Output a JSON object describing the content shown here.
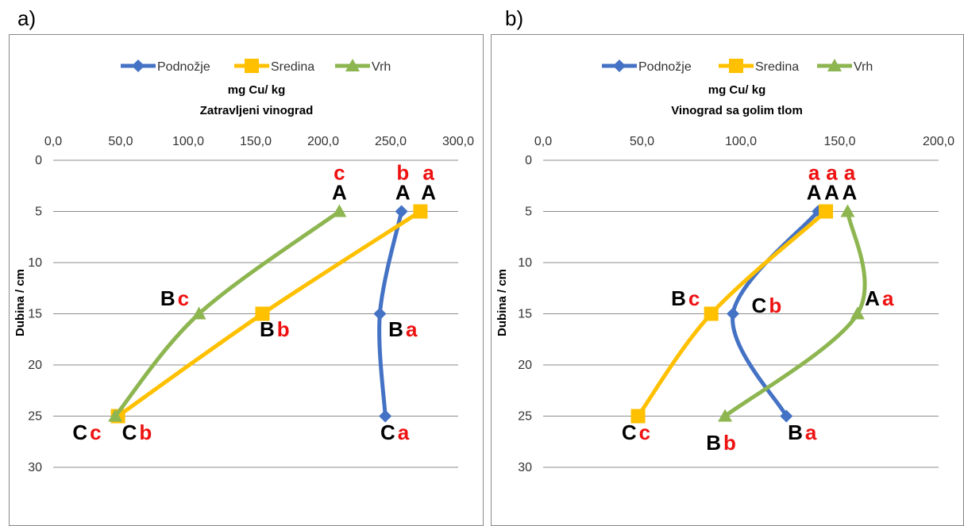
{
  "panels": [
    {
      "letter": "a)"
    },
    {
      "letter": "b)"
    }
  ],
  "chart_data": [
    {
      "type": "line",
      "title": "mg Cu/ kg",
      "subtitle": "Zatravljeni vinograd",
      "xlabel": "",
      "ylabel": "Dubina / cm",
      "xlim": [
        0,
        300
      ],
      "ylim": [
        0,
        30
      ],
      "y_inverted": true,
      "x_axis_position": "top",
      "x_ticks": [
        "0,0",
        "50,0",
        "100,0",
        "150,0",
        "200,0",
        "250,0",
        "300,0"
      ],
      "y_ticks": [
        "0",
        "5",
        "10",
        "15",
        "20",
        "25",
        "30"
      ],
      "grid": "horizontal",
      "legend_position": "top",
      "series": [
        {
          "name": "Podnožje",
          "color": "#4472c4",
          "marker": "diamond",
          "x": [
            258,
            242,
            246
          ],
          "y": [
            5,
            15,
            25
          ]
        },
        {
          "name": "Sredina",
          "color": "#ffc000",
          "marker": "square",
          "x": [
            272,
            155,
            48
          ],
          "y": [
            5,
            15,
            25
          ]
        },
        {
          "name": "Vrh",
          "color": "#8db550",
          "marker": "triangle",
          "x": [
            212,
            108,
            46
          ],
          "y": [
            5,
            15,
            25
          ]
        }
      ],
      "annotations": [
        {
          "upper": "A",
          "lower": "c",
          "stacked": true,
          "x": 212,
          "y": 5
        },
        {
          "upper": "A",
          "lower": "b",
          "stacked": true,
          "x": 259,
          "y": 5
        },
        {
          "upper": "A",
          "lower": "a",
          "stacked": true,
          "x": 278,
          "y": 5
        },
        {
          "upper": "B",
          "lower": "c",
          "stacked": false,
          "x": 90,
          "y": 14.2
        },
        {
          "upper": "B",
          "lower": "b",
          "stacked": false,
          "x": 164,
          "y": 17.2
        },
        {
          "upper": "B",
          "lower": "a",
          "stacked": false,
          "x": 259,
          "y": 17.2
        },
        {
          "upper": "C",
          "lower": "c",
          "stacked": false,
          "x": 25,
          "y": 27.3
        },
        {
          "upper": "C",
          "lower": "b",
          "stacked": false,
          "x": 62,
          "y": 27.3
        },
        {
          "upper": "C",
          "lower": "a",
          "stacked": false,
          "x": 253,
          "y": 27.3
        }
      ]
    },
    {
      "type": "line",
      "title": "mg Cu/ kg",
      "subtitle": "Vinograd sa golim tlom",
      "xlabel": "",
      "ylabel": "Dubina / cm",
      "xlim": [
        0,
        200
      ],
      "ylim": [
        0,
        30
      ],
      "y_inverted": true,
      "x_axis_position": "top",
      "x_ticks": [
        "0,0",
        "50,0",
        "100,0",
        "150,0",
        "200,0"
      ],
      "y_ticks": [
        "0",
        "5",
        "10",
        "15",
        "20",
        "25",
        "30"
      ],
      "grid": "horizontal",
      "legend_position": "top",
      "series": [
        {
          "name": "Podnožje",
          "color": "#4472c4",
          "marker": "diamond",
          "x": [
            139,
            96,
            123
          ],
          "y": [
            5,
            15,
            25
          ]
        },
        {
          "name": "Sredina",
          "color": "#ffc000",
          "marker": "square",
          "x": [
            143,
            85,
            48
          ],
          "y": [
            5,
            15,
            25
          ]
        },
        {
          "name": "Vrh",
          "color": "#8db550",
          "marker": "triangle",
          "x": [
            154,
            159,
            92
          ],
          "y": [
            5,
            15,
            25
          ]
        }
      ],
      "annotations": [
        {
          "upper": "A",
          "lower": "a",
          "stacked": true,
          "x": 137,
          "y": 5
        },
        {
          "upper": "A",
          "lower": "a",
          "stacked": true,
          "x": 146,
          "y": 5
        },
        {
          "upper": "A",
          "lower": "a",
          "stacked": true,
          "x": 155,
          "y": 5
        },
        {
          "upper": "B",
          "lower": "c",
          "stacked": false,
          "x": 72,
          "y": 14.2
        },
        {
          "upper": "C",
          "lower": "b",
          "stacked": false,
          "x": 113,
          "y": 14.9
        },
        {
          "upper": "A",
          "lower": "a",
          "stacked": false,
          "x": 170,
          "y": 14.2
        },
        {
          "upper": "C",
          "lower": "c",
          "stacked": false,
          "x": 47,
          "y": 27.3
        },
        {
          "upper": "B",
          "lower": "b",
          "stacked": false,
          "x": 90,
          "y": 28.3
        },
        {
          "upper": "B",
          "lower": "a",
          "stacked": false,
          "x": 131,
          "y": 27.3
        }
      ]
    }
  ]
}
